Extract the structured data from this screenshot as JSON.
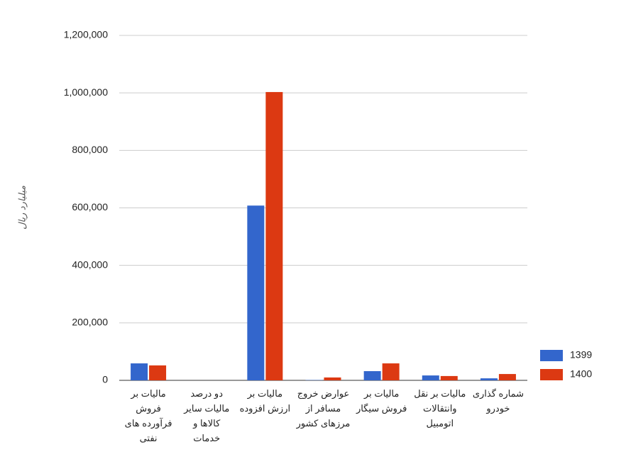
{
  "chart_data": {
    "type": "bar",
    "y_axis_title": "میلیارد ریال",
    "categories": [
      "مالیات بر فروش فرآورده های نفتی",
      "دو درصد مالیات سایر کالاها و خدمات",
      "مالیات بر ارزش افزوده",
      "عوارض خروج مسافر از مرزهای کشور",
      "مالیات بر فروش سیگار",
      "مالیات بر نقل وانتقالات اتومبیل",
      "شماره گذاری خودرو"
    ],
    "series": [
      {
        "name": "1399",
        "color": "#3366cc",
        "values": [
          59000,
          0,
          608000,
          1000,
          32000,
          17000,
          7000
        ]
      },
      {
        "name": "1400",
        "color": "#dc3912",
        "values": [
          52000,
          0,
          1003000,
          10000,
          59000,
          15000,
          22000
        ]
      }
    ],
    "ylim": [
      0,
      1200000
    ],
    "yticks": [
      0,
      {
        "value": 200000,
        "label": "200,000"
      },
      {
        "value": 400000,
        "label": "400,000"
      },
      {
        "value": 600000,
        "label": "600,000"
      },
      {
        "value": 800000,
        "label": "800,000"
      },
      {
        "value": 1000000,
        "label": "1,000,000"
      },
      {
        "value": 1200000,
        "label": "1,200,000"
      }
    ],
    "grid": true,
    "legend_position": "right"
  }
}
